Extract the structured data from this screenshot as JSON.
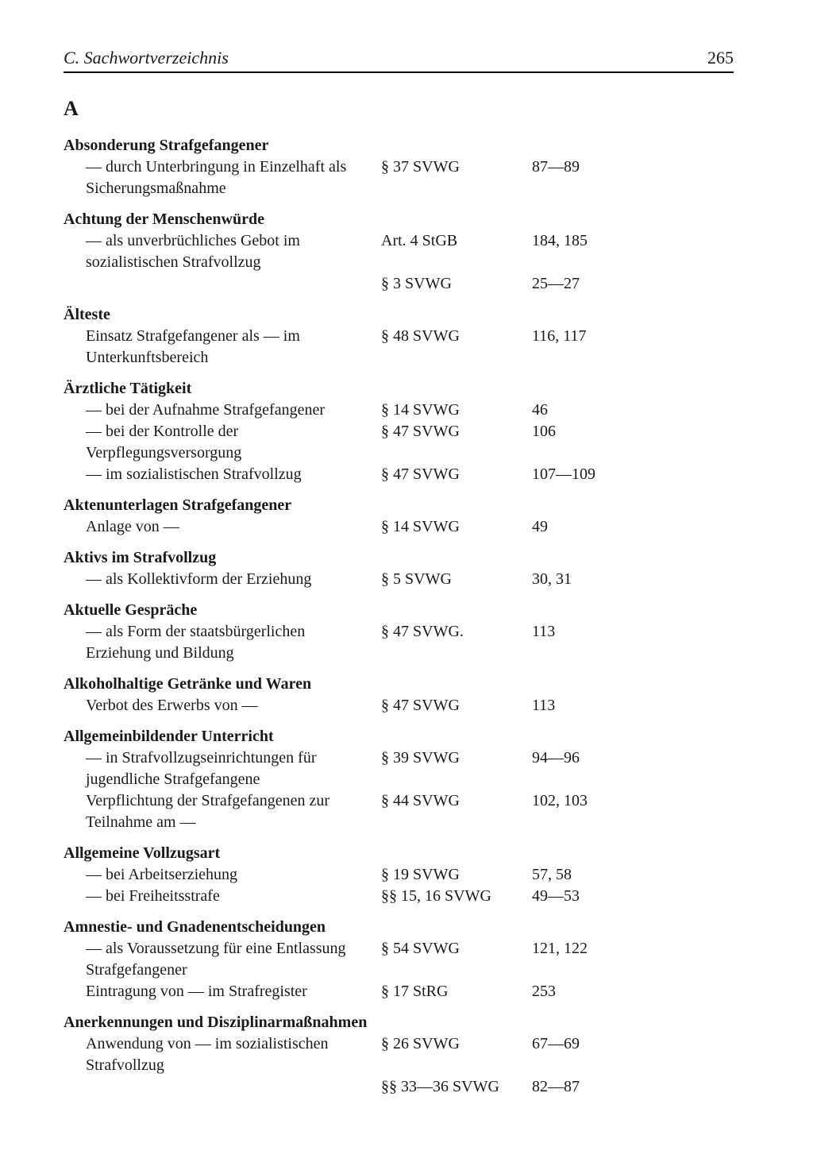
{
  "header": {
    "title": "C. Sachwortverzeichnis",
    "page_number": "265"
  },
  "letter": "A",
  "entries": [
    {
      "title": "Absonderung Strafgefangener",
      "rows": [
        {
          "desc": "— durch Unterbringung in Einzelhaft als Sicherungsmaßnahme",
          "ref": "§ 37 SVWG",
          "pages": "87—89"
        }
      ]
    },
    {
      "title": "Achtung der Menschenwürde",
      "rows": [
        {
          "desc": "— als unverbrüchliches Gebot im sozialistischen Strafvollzug",
          "ref": "Art. 4 StGB",
          "pages": "184, 185"
        },
        {
          "desc": "",
          "ref": "§ 3 SVWG",
          "pages": "25—27"
        }
      ]
    },
    {
      "title": "Älteste",
      "rows": [
        {
          "desc": "Einsatz Strafgefangener als — im Unterkunftsbereich",
          "ref": "§ 48 SVWG",
          "pages": "116, 117"
        }
      ]
    },
    {
      "title": "Ärztliche Tätigkeit",
      "rows": [
        {
          "desc": "— bei der Aufnahme Strafgefangener",
          "ref": "§ 14 SVWG",
          "pages": "46"
        },
        {
          "desc": "— bei der Kontrolle der Verpflegungsversorgung",
          "ref": "§ 47 SVWG",
          "pages": "106"
        },
        {
          "desc": "— im sozialistischen Strafvollzug",
          "ref": "§ 47 SVWG",
          "pages": "107—109"
        }
      ]
    },
    {
      "title": "Aktenunterlagen Strafgefangener",
      "rows": [
        {
          "desc": "Anlage von —",
          "ref": "§ 14 SVWG",
          "pages": "49"
        }
      ]
    },
    {
      "title": "Aktivs im Strafvollzug",
      "rows": [
        {
          "desc": "— als Kollektivform der Erziehung",
          "ref": "§ 5 SVWG",
          "pages": "30, 31"
        }
      ]
    },
    {
      "title": "Aktuelle Gespräche",
      "rows": [
        {
          "desc": "— als Form der staatsbürgerlichen Erziehung und Bildung",
          "ref": "§ 47 SVWG.",
          "pages": "113"
        }
      ]
    },
    {
      "title": "Alkoholhaltige Getränke und Waren",
      "rows": [
        {
          "desc": "Verbot des Erwerbs von —",
          "ref": "§ 47 SVWG",
          "pages": "113"
        }
      ]
    },
    {
      "title": "Allgemeinbildender Unterricht",
      "rows": [
        {
          "desc": "— in Strafvollzugseinrichtungen für jugendliche Strafgefangene",
          "ref": "§ 39 SVWG",
          "pages": "94—96"
        },
        {
          "desc": "Verpflichtung der Strafgefangenen zur Teilnahme am —",
          "ref": "§ 44 SVWG",
          "pages": "102, 103"
        }
      ]
    },
    {
      "title": "Allgemeine Vollzugsart",
      "rows": [
        {
          "desc": "— bei Arbeitserziehung",
          "ref": "§ 19 SVWG",
          "pages": "57, 58"
        },
        {
          "desc": "— bei Freiheitsstrafe",
          "ref": "§§ 15, 16 SVWG",
          "pages": "49—53"
        }
      ]
    },
    {
      "title": "Amnestie- und Gnadenentscheidungen",
      "rows": [
        {
          "desc": "— als Voraussetzung für eine Entlassung Strafgefangener",
          "ref": "§ 54 SVWG",
          "pages": "121, 122"
        },
        {
          "desc": "Eintragung von — im Strafregister",
          "ref": "§ 17 StRG",
          "pages": "253"
        }
      ]
    },
    {
      "title": "Anerkennungen und Disziplinarmaßnahmen",
      "rows": [
        {
          "desc": "Anwendung von — im sozialistischen Strafvollzug",
          "ref": "§ 26 SVWG",
          "pages": "67—69"
        },
        {
          "desc": "",
          "ref": "§§ 33—36 SVWG",
          "pages": "82—87"
        }
      ]
    }
  ]
}
